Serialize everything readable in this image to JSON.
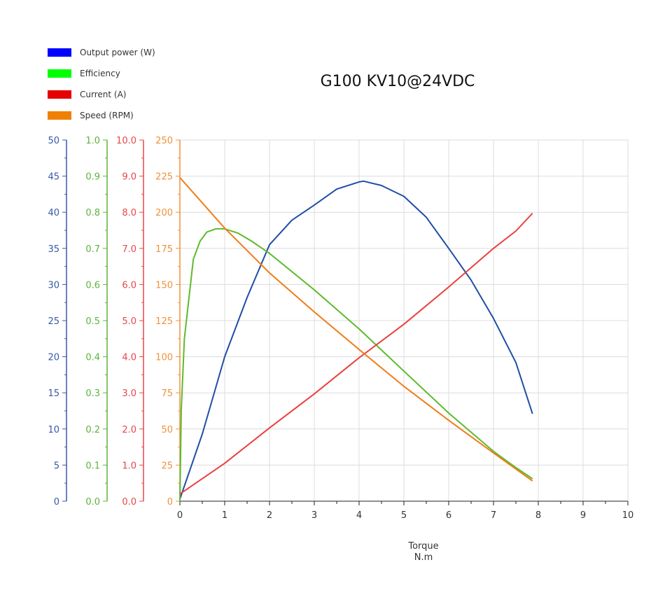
{
  "chart_data": {
    "type": "line",
    "title": "G100 KV10@24VDC",
    "xlabel": "Torque",
    "xunit": "N.m",
    "xlim": [
      0,
      10
    ],
    "xticks": [
      0,
      1,
      2,
      3,
      4,
      5,
      6,
      7,
      8,
      9,
      10
    ],
    "grid": true,
    "legend_position": "top-left",
    "series": [
      {
        "name": "Output power (W)",
        "legend_color": "#0000ff",
        "line_color": "#1f4ea6",
        "axis_color": "#3858a8",
        "ylim": [
          0,
          50
        ],
        "yticks": [
          0,
          5,
          10,
          15,
          20,
          25,
          30,
          35,
          40,
          45,
          50
        ],
        "tick_format": 0,
        "x": [
          0,
          0.5,
          1,
          1.5,
          2,
          2.5,
          3,
          3.5,
          4,
          4.1,
          4.5,
          5,
          5.5,
          6,
          6.5,
          7,
          7.5,
          7.87
        ],
        "y": [
          0.3,
          9.3,
          20,
          28.2,
          35.5,
          38.9,
          41,
          43.2,
          44.2,
          44.3,
          43.7,
          42.2,
          39.3,
          35,
          30.6,
          25.3,
          19.2,
          12.1
        ]
      },
      {
        "name": "Efficiency",
        "legend_color": "#00ff00",
        "line_color": "#5dba2c",
        "axis_color": "#5db33a",
        "ylim": [
          0,
          1.0
        ],
        "yticks": [
          0,
          0.1,
          0.2,
          0.3,
          0.4,
          0.5,
          0.6,
          0.7,
          0.8,
          0.9,
          1.0
        ],
        "tick_format": 1,
        "x": [
          0,
          0.03,
          0.1,
          0.2,
          0.3,
          0.45,
          0.6,
          0.8,
          1,
          1.3,
          1.6,
          2,
          3,
          4,
          5,
          6,
          7,
          7.5,
          7.87
        ],
        "y": [
          0,
          0.25,
          0.45,
          0.56,
          0.67,
          0.72,
          0.745,
          0.754,
          0.754,
          0.742,
          0.72,
          0.686,
          0.585,
          0.477,
          0.36,
          0.244,
          0.138,
          0.093,
          0.062
        ]
      },
      {
        "name": "Current (A)",
        "legend_color": "#e60000",
        "line_color": "#e8413f",
        "axis_color": "#e8464a",
        "ylim": [
          0,
          10.0
        ],
        "yticks": [
          0,
          1,
          2,
          3,
          4,
          5,
          6,
          7,
          8,
          9,
          10
        ],
        "tick_format": 1,
        "x": [
          0,
          1,
          2,
          3,
          4,
          5,
          6,
          7,
          7.5,
          7.87
        ],
        "y": [
          0.2,
          1.05,
          2.03,
          2.97,
          3.97,
          4.9,
          5.93,
          7.0,
          7.48,
          7.97
        ]
      },
      {
        "name": "Speed (RPM)",
        "legend_color": "#f08000",
        "line_color": "#f07c1a",
        "axis_color": "#f0903a",
        "ylim": [
          0,
          250
        ],
        "yticks": [
          0,
          25,
          50,
          75,
          100,
          125,
          150,
          175,
          200,
          225,
          250
        ],
        "tick_format": 0,
        "x": [
          0,
          1,
          2,
          3,
          4,
          5,
          6,
          7,
          7.87
        ],
        "y": [
          224,
          189,
          158,
          131,
          105,
          79.5,
          56,
          33.4,
          14
        ]
      }
    ]
  }
}
